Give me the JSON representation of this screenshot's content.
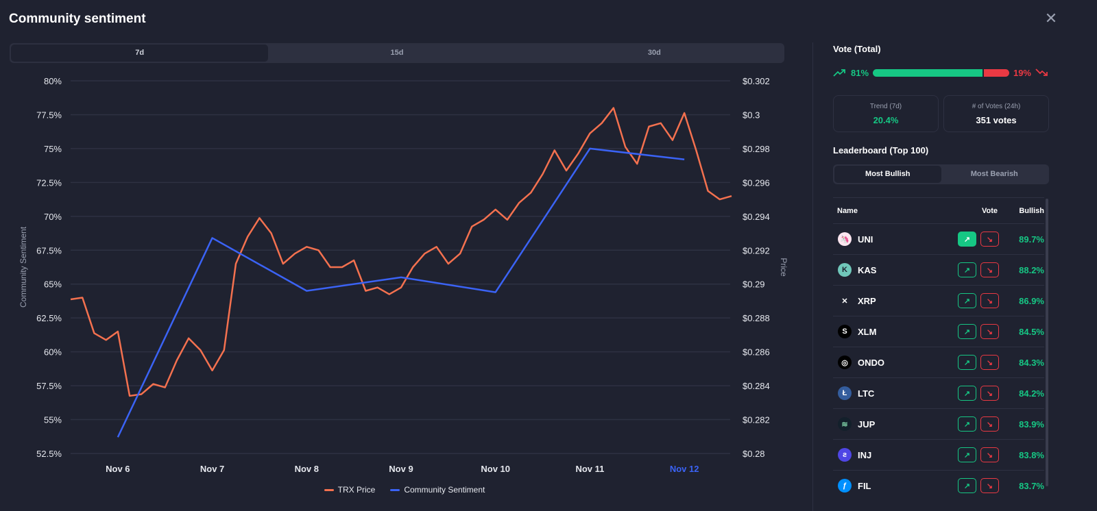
{
  "title": "Community sentiment",
  "tabs": [
    "7d",
    "15d",
    "30d"
  ],
  "active_tab": "7d",
  "vote": {
    "title": "Vote (Total)",
    "bullish_pct": 81,
    "bearish_pct": 19,
    "bullish_label": "81%",
    "bearish_label": "19%",
    "colors": {
      "bullish": "#16c784",
      "bearish": "#ea3943"
    }
  },
  "stats": [
    {
      "label": "Trend (7d)",
      "value": "20.4%"
    },
    {
      "label": "# of Votes (24h)",
      "value": "351 votes"
    }
  ],
  "leaderboard": {
    "title": "Leaderboard (Top 100)",
    "tabs": [
      "Most Bullish",
      "Most Bearish"
    ],
    "columns": [
      "Name",
      "Vote",
      "Bullish"
    ],
    "rows": [
      {
        "name": "UNI",
        "bullish": "89.7%",
        "voted": "up"
      },
      {
        "name": "KAS",
        "bullish": "88.2%"
      },
      {
        "name": "XRP",
        "bullish": "86.9%"
      },
      {
        "name": "XLM",
        "bullish": "84.5%"
      },
      {
        "name": "ONDO",
        "bullish": "84.3%"
      },
      {
        "name": "LTC",
        "bullish": "84.2%"
      },
      {
        "name": "JUP",
        "bullish": "83.9%"
      },
      {
        "name": "INJ",
        "bullish": "83.8%"
      },
      {
        "name": "FIL",
        "bullish": "83.7%"
      }
    ]
  },
  "chart_data": {
    "type": "line",
    "ylabel": "Community Sentiment",
    "y2label": "Price",
    "x_ticks": [
      "Nov 6",
      "Nov 7",
      "Nov 8",
      "Nov 9",
      "Nov 10",
      "Nov 11",
      "Nov 12"
    ],
    "highlighted_tick": "Nov 12",
    "y_ticks": [
      "52.5%",
      "55%",
      "57.5%",
      "60%",
      "62.5%",
      "65%",
      "67.5%",
      "70%",
      "72.5%",
      "75%",
      "77.5%",
      "80%"
    ],
    "y2_ticks": [
      "$0.28",
      "$0.282",
      "$0.284",
      "$0.286",
      "$0.288",
      "$0.29",
      "$0.292",
      "$0.294",
      "$0.296",
      "$0.298",
      "$0.3",
      "$0.302"
    ],
    "ylim": [
      52.5,
      80
    ],
    "y2lim": [
      0.28,
      0.302
    ],
    "grid": true,
    "legend": "bottom",
    "series": [
      {
        "name": "TRX Price",
        "axis": "right",
        "color": "#f4714f",
        "x": [
          "Nov 5 12:00",
          "Nov 5 15:00",
          "Nov 5 18:00",
          "Nov 5 21:00",
          "Nov 6 00:00",
          "Nov 6 03:00",
          "Nov 6 06:00",
          "Nov 6 09:00",
          "Nov 6 12:00",
          "Nov 6 15:00",
          "Nov 6 18:00",
          "Nov 6 21:00",
          "Nov 7 00:00",
          "Nov 7 03:00",
          "Nov 7 06:00",
          "Nov 7 09:00",
          "Nov 7 12:00",
          "Nov 7 15:00",
          "Nov 7 18:00",
          "Nov 7 21:00",
          "Nov 8 00:00",
          "Nov 8 03:00",
          "Nov 8 06:00",
          "Nov 8 09:00",
          "Nov 8 12:00",
          "Nov 8 15:00",
          "Nov 8 18:00",
          "Nov 8 21:00",
          "Nov 9 00:00",
          "Nov 9 03:00",
          "Nov 9 06:00",
          "Nov 9 09:00",
          "Nov 9 12:00",
          "Nov 9 15:00",
          "Nov 9 18:00",
          "Nov 9 21:00",
          "Nov 10 00:00",
          "Nov 10 03:00",
          "Nov 10 06:00",
          "Nov 10 09:00",
          "Nov 10 12:00",
          "Nov 10 15:00",
          "Nov 10 18:00",
          "Nov 10 21:00",
          "Nov 11 00:00",
          "Nov 11 03:00",
          "Nov 11 06:00",
          "Nov 11 09:00",
          "Nov 11 12:00",
          "Nov 11 15:00",
          "Nov 11 18:00",
          "Nov 11 21:00",
          "Nov 12 00:00",
          "Nov 12 03:00",
          "Nov 12 06:00",
          "Nov 12 09:00",
          "Nov 12 12:00"
        ],
        "values": [
          0.2891,
          0.2892,
          0.2871,
          0.2867,
          0.2872,
          0.2834,
          0.2835,
          0.2841,
          0.2839,
          0.2855,
          0.2868,
          0.2861,
          0.2849,
          0.2861,
          0.2912,
          0.2928,
          0.2939,
          0.293,
          0.2912,
          0.2918,
          0.2922,
          0.292,
          0.291,
          0.291,
          0.2914,
          0.2896,
          0.2898,
          0.2894,
          0.2898,
          0.291,
          0.2918,
          0.2922,
          0.2912,
          0.2918,
          0.2934,
          0.2938,
          0.2944,
          0.2938,
          0.2948,
          0.2954,
          0.2965,
          0.2979,
          0.2967,
          0.2977,
          0.2989,
          0.2995,
          0.3004,
          0.2981,
          0.2971,
          0.2993,
          0.2995,
          0.2985,
          0.3001,
          0.2979,
          0.2955,
          0.295,
          0.2952
        ]
      },
      {
        "name": "Community Sentiment",
        "axis": "left",
        "color": "#3b63f5",
        "x": [
          "Nov 6 00:00",
          "Nov 7 00:00",
          "Nov 8 00:00",
          "Nov 9 00:00",
          "Nov 10 00:00",
          "Nov 11 00:00",
          "Nov 12 00:00"
        ],
        "values": [
          53.7,
          68.4,
          64.5,
          65.5,
          64.4,
          75.0,
          74.2
        ]
      }
    ]
  }
}
